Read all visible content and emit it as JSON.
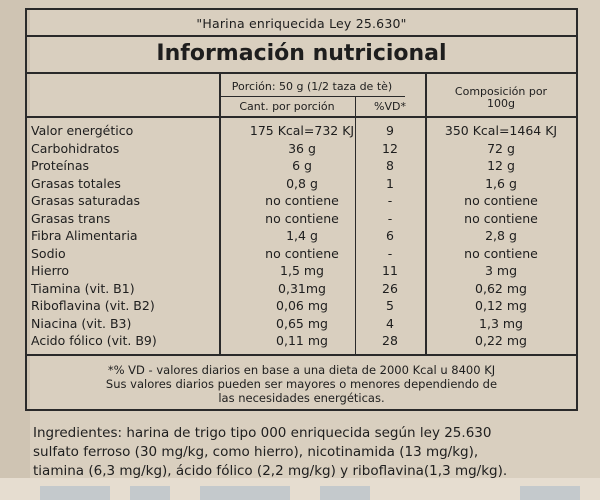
{
  "label": {
    "law_title": "\"Harina  enriquecida Ley 25.630\"",
    "heading": "Información nutricional",
    "portion_header": "Porción: 50 g (1/2 taza de tè)",
    "col_qty": "Cant. por porción",
    "col_vd": "%VD*",
    "col_100": "Composición por 100g",
    "rows": [
      {
        "name": "Valor energético",
        "qty": "175 Kcal=732 KJ",
        "vd": "9",
        "per100": "350 Kcal=1464 KJ"
      },
      {
        "name": "Carbohidratos",
        "qty": "36 g",
        "vd": "12",
        "per100": "72 g"
      },
      {
        "name": "Proteínas",
        "qty": "6 g",
        "vd": "8",
        "per100": "12 g"
      },
      {
        "name": "Grasas totales",
        "qty": "0,8 g",
        "vd": "1",
        "per100": "1,6 g"
      },
      {
        "name": "Grasas saturadas",
        "qty": "no contiene",
        "vd": "-",
        "per100": "no contiene"
      },
      {
        "name": "Grasas trans",
        "qty": "no contiene",
        "vd": "-",
        "per100": "no contiene"
      },
      {
        "name": "Fibra Alimentaria",
        "qty": "1,4 g",
        "vd": "6",
        "per100": "2,8 g"
      },
      {
        "name": "Sodio",
        "qty": "no contiene",
        "vd": "-",
        "per100": "no contiene"
      },
      {
        "name": "Hierro",
        "qty": "1,5 mg",
        "vd": "11",
        "per100": "3 mg"
      },
      {
        "name": "Tiamina (vit. B1)",
        "qty": "0,31mg",
        "vd": "26",
        "per100": "0,62 mg"
      },
      {
        "name": "Riboflavina (vit. B2)",
        "qty": "0,06 mg",
        "vd": "5",
        "per100": "0,12 mg"
      },
      {
        "name": "Niacina (vit. B3)",
        "qty": "0,65 mg",
        "vd": "4",
        "per100": "1,3 mg"
      },
      {
        "name": "Acido fólico (vit. B9)",
        "qty": "0,11 mg",
        "vd": "28",
        "per100": "0,22 mg"
      }
    ],
    "footnote": [
      "*% VD - valores diarios en base a una dieta de 2000 Kcal u 8400 KJ",
      "Sus valores diarios pueden ser mayores o menores dependiendo de",
      "las necesidades energéticas."
    ]
  },
  "ingredients": [
    "Ingredientes: harina de trigo tipo 000 enriquecida según ley 25.630",
    "sulfato ferroso (30 mg/kg, como hierro), nicotinamida (13 mg/kg),",
    "tiamina (6,3 mg/kg), ácido fólico (2,2 mg/kg) y  riboflavina(1,3 mg/kg)."
  ]
}
